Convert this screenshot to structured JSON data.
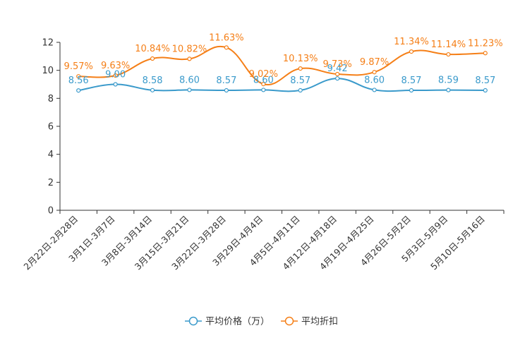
{
  "chart_data": {
    "type": "line",
    "title": "",
    "xlabel": "",
    "ylabel": "",
    "ylim": [
      0,
      12
    ],
    "yticks": [
      0,
      2,
      4,
      6,
      8,
      10,
      12
    ],
    "grid": false,
    "legend_position": "bottom-center",
    "categories": [
      "2月22日-2月28日",
      "3月1日-3月7日",
      "3月8日-3月14日",
      "3月15日-3月21日",
      "3月22日-3月28日",
      "3月29日-4月4日",
      "4月5日-4月11日",
      "4月12日-4月18日",
      "4月19日-4月25日",
      "4月26日-5月2日",
      "5月3日-5月9日",
      "5月10日-5月16日"
    ],
    "series": [
      {
        "name": "平均价格（万）",
        "color": "#3a9acb",
        "values": [
          8.56,
          9.0,
          8.58,
          8.6,
          8.57,
          8.6,
          8.57,
          9.42,
          8.6,
          8.57,
          8.59,
          8.57
        ],
        "labels": [
          "8.56",
          "9.00",
          "8.58",
          "8.60",
          "8.57",
          "8.60",
          "8.57",
          "9.42",
          "8.60",
          "8.57",
          "8.59",
          "8.57"
        ]
      },
      {
        "name": "平均折扣",
        "color": "#f57f17",
        "values": [
          9.57,
          9.63,
          10.84,
          10.82,
          11.63,
          9.02,
          10.13,
          9.73,
          9.87,
          11.34,
          11.14,
          11.23
        ],
        "labels": [
          "9.57%",
          "9.63%",
          "10.84%",
          "10.82%",
          "11.63%",
          "9.02%",
          "10.13%",
          "9.73%",
          "9.87%",
          "11.34%",
          "11.14%",
          "11.23%"
        ]
      }
    ]
  }
}
